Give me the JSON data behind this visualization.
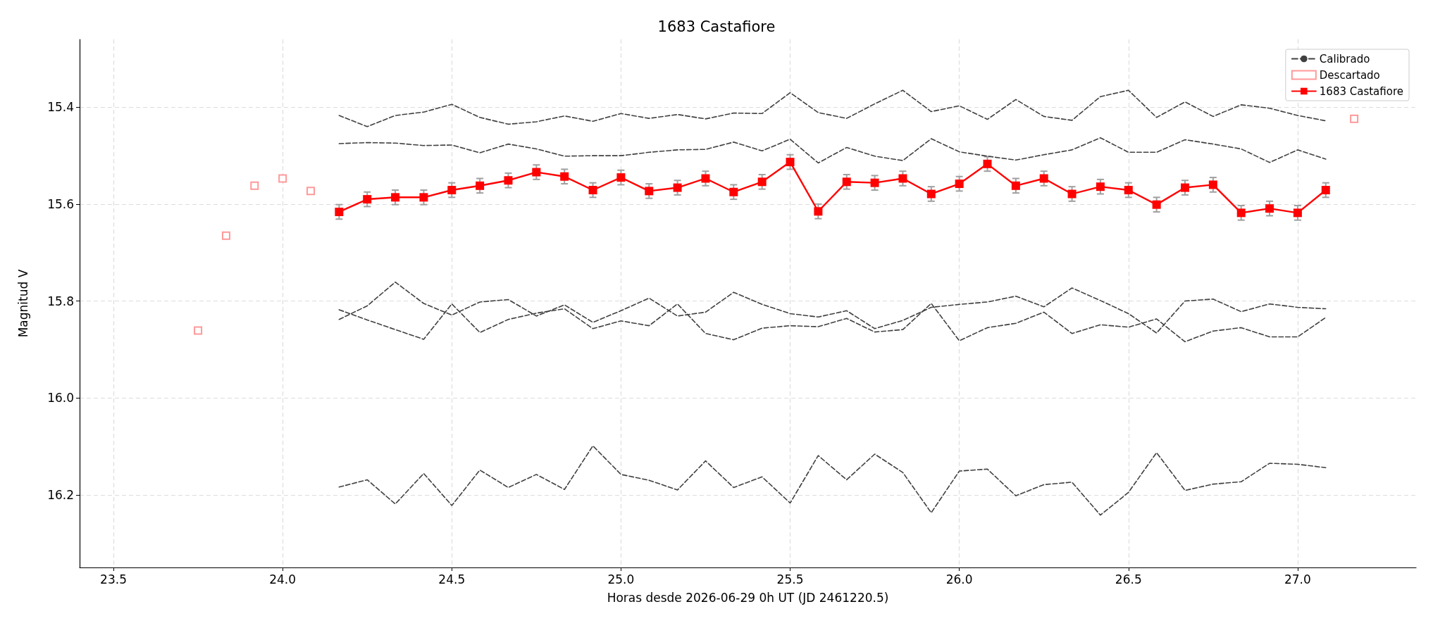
{
  "chart_data": {
    "type": "line",
    "title": "1683 Castafiore",
    "xlabel": "Horas desde 2026-06-29 0h UT (JD 2461220.5)",
    "ylabel": "Magnitud V",
    "x": [
      24.167,
      24.25,
      24.333,
      24.417,
      24.5,
      24.583,
      24.667,
      24.75,
      24.833,
      24.917,
      25.0,
      25.083,
      25.167,
      25.25,
      25.333,
      25.417,
      25.5,
      25.583,
      25.667,
      25.75,
      25.833,
      25.917,
      26.0,
      26.083,
      26.167,
      26.25,
      26.333,
      26.417,
      26.5,
      26.583,
      26.667,
      26.75,
      26.833,
      26.917,
      27.0,
      27.083
    ],
    "xlim": [
      23.4,
      27.35
    ],
    "xticks": [
      23.5,
      {
        "value": 24,
        "label": "24.0"
      },
      24.5,
      {
        "value": 25,
        "label": "25.0"
      },
      25.5,
      {
        "value": 26,
        "label": "26.0"
      },
      26.5,
      {
        "value": 27,
        "label": "27.0"
      }
    ],
    "ylim": [
      16.35,
      15.26
    ],
    "yticks": [
      15.4,
      15.6,
      15.8,
      {
        "value": 16,
        "label": "16.0"
      },
      16.2
    ],
    "grid": true,
    "legend": "top right",
    "series": [
      {
        "name": "Calibrado",
        "color": "#404040",
        "line_style": "dashed",
        "marker": "none",
        "values": [
          15.417,
          15.44,
          15.417,
          15.41,
          15.394,
          15.421,
          15.435,
          15.43,
          15.418,
          15.429,
          15.413,
          15.423,
          15.415,
          15.424,
          15.412,
          15.413,
          15.37,
          15.411,
          15.423,
          15.393,
          15.365,
          15.409,
          15.397,
          15.425,
          15.384,
          15.419,
          15.427,
          15.378,
          15.365,
          15.421,
          15.389,
          15.419,
          15.395,
          15.402,
          15.417,
          15.428
        ]
      },
      {
        "color": "#404040",
        "line_style": "dashed",
        "marker": "none",
        "values": [
          15.475,
          15.473,
          15.474,
          15.479,
          15.478,
          15.494,
          15.476,
          15.486,
          15.501,
          15.5,
          15.5,
          15.493,
          15.488,
          15.487,
          15.472,
          15.49,
          15.466,
          15.515,
          15.483,
          15.501,
          15.51,
          15.465,
          15.492,
          15.501,
          15.509,
          15.498,
          15.488,
          15.463,
          15.493,
          15.493,
          15.467,
          15.476,
          15.486,
          15.514,
          15.488,
          15.507
        ]
      },
      {
        "color": "#404040",
        "line_style": "dashed",
        "marker": "none",
        "values": [
          15.838,
          15.81,
          15.761,
          15.805,
          15.829,
          15.802,
          15.797,
          15.831,
          15.808,
          15.844,
          15.82,
          15.794,
          15.831,
          15.823,
          15.782,
          15.807,
          15.826,
          15.833,
          15.82,
          15.857,
          15.84,
          15.813,
          15.807,
          15.802,
          15.79,
          15.812,
          15.773,
          15.799,
          15.826,
          15.866,
          15.8,
          15.796,
          15.822,
          15.806,
          15.813,
          15.816
        ]
      },
      {
        "color": "#404040",
        "line_style": "dashed",
        "marker": "none",
        "values": [
          15.818,
          15.839,
          15.859,
          15.879,
          15.806,
          15.865,
          15.838,
          15.825,
          15.816,
          15.857,
          15.841,
          15.851,
          15.806,
          15.867,
          15.88,
          15.856,
          15.851,
          15.853,
          15.836,
          15.864,
          15.859,
          15.805,
          15.882,
          15.855,
          15.846,
          15.823,
          15.867,
          15.849,
          15.854,
          15.837,
          15.884,
          15.862,
          15.855,
          15.874,
          15.874,
          15.834
        ]
      },
      {
        "color": "#404040",
        "line_style": "dashed",
        "marker": "none",
        "values": [
          16.184,
          16.169,
          16.219,
          16.156,
          16.222,
          16.149,
          16.185,
          16.158,
          16.189,
          16.099,
          16.158,
          16.17,
          16.19,
          16.13,
          16.185,
          16.163,
          16.217,
          16.119,
          16.169,
          16.116,
          16.154,
          16.237,
          16.151,
          16.147,
          16.202,
          16.179,
          16.174,
          16.242,
          16.195,
          16.113,
          16.191,
          16.178,
          16.173,
          16.135,
          16.137,
          16.144
        ]
      },
      {
        "name": "Descartado",
        "type": "scatter",
        "color": "#ff8080",
        "marker": "square",
        "x": [
          23.75,
          23.833,
          23.917,
          24.0,
          24.083,
          27.167
        ],
        "values": [
          15.861,
          15.665,
          15.562,
          15.547,
          15.573,
          15.424
        ]
      },
      {
        "name": "1683 Castafiore",
        "color": "#ff0000",
        "line_style": "solid",
        "marker": "square",
        "errors": [
          0.015,
          0.015,
          0.015,
          0.015,
          0.015,
          0.015,
          0.015,
          0.015,
          0.015,
          0.015,
          0.015,
          0.015,
          0.015,
          0.015,
          0.015,
          0.015,
          0.015,
          0.015,
          0.015,
          0.015,
          0.015,
          0.015,
          0.015,
          0.015,
          0.015,
          0.015,
          0.015,
          0.015,
          0.015,
          0.015,
          0.015,
          0.015,
          0.015,
          0.015,
          0.015,
          0.015
        ],
        "values": [
          15.616,
          15.59,
          15.586,
          15.586,
          15.571,
          15.562,
          15.551,
          15.534,
          15.543,
          15.571,
          15.545,
          15.573,
          15.566,
          15.547,
          15.575,
          15.554,
          15.513,
          15.615,
          15.554,
          15.556,
          15.547,
          15.579,
          15.558,
          15.517,
          15.562,
          15.547,
          15.579,
          15.564,
          15.571,
          15.601,
          15.566,
          15.56,
          15.618,
          15.609,
          15.618,
          15.571
        ]
      }
    ]
  }
}
